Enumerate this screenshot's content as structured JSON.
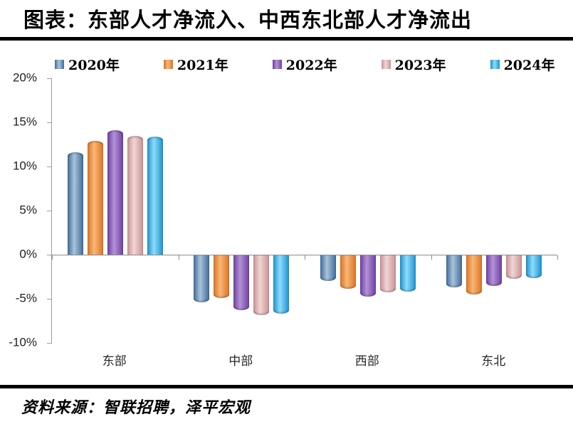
{
  "header": {
    "title": "图表：东部人才净流入、中西东北部人才净流出"
  },
  "footer": {
    "source": "资料来源：智联招聘，泽平宏观"
  },
  "chart_data": {
    "type": "bar",
    "title": "图表：东部人才净流入、中西东北部人才净流出",
    "categories": [
      "东部",
      "中部",
      "西部",
      "东北"
    ],
    "series": [
      {
        "name": "2020年",
        "color": "#3f6c9c",
        "color_light": "#a9c3d9",
        "values": [
          11.6,
          -5.3,
          -2.9,
          -3.6
        ]
      },
      {
        "name": "2021年",
        "color": "#dd7323",
        "color_light": "#f8b777",
        "values": [
          12.9,
          -4.8,
          -3.8,
          -4.4
        ]
      },
      {
        "name": "2022年",
        "color": "#6f3fa3",
        "color_light": "#b292d5",
        "values": [
          14.1,
          -6.2,
          -4.7,
          -3.5
        ]
      },
      {
        "name": "2023年",
        "color": "#cc9193",
        "color_light": "#eed6d5",
        "values": [
          13.5,
          -6.8,
          -4.2,
          -2.7
        ]
      },
      {
        "name": "2024年",
        "color": "#1b92d0",
        "color_light": "#8edcfa",
        "values": [
          13.4,
          -6.6,
          -4.1,
          -2.6
        ]
      }
    ],
    "y_ticks": [
      "20%",
      "15%",
      "10%",
      "5%",
      "0%",
      "-5%",
      "-10%"
    ],
    "ylim": [
      -10,
      20
    ],
    "xlabel": "",
    "ylabel": "",
    "grid": false,
    "legend_position": "top",
    "axis_color": "#9d9d9d"
  }
}
